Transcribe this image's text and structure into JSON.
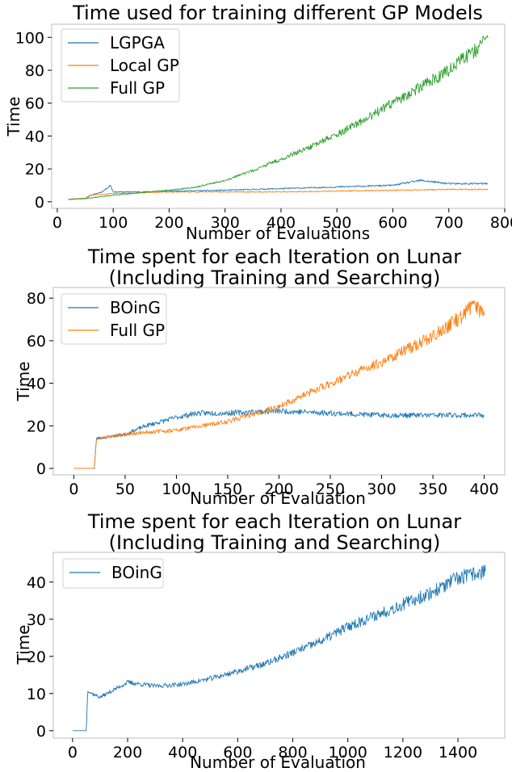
{
  "chart_data": [
    {
      "type": "line",
      "title": "Time used for training different GP Models",
      "title_lines": [
        "Time used for training different GP Models"
      ],
      "xlabel": "Number of Evaluations",
      "ylabel": "Time",
      "xlim": [
        -10,
        800
      ],
      "ylim": [
        -4,
        108
      ],
      "xticks": [
        0,
        100,
        200,
        300,
        400,
        500,
        600,
        700,
        800
      ],
      "yticks": [
        0,
        20,
        40,
        60,
        80,
        100
      ],
      "grid": false,
      "legend_position": "top-left",
      "series": [
        {
          "name": "LGPGA",
          "color": "#1f77b4",
          "x": [
            20,
            50,
            60,
            80,
            95,
            100,
            150,
            200,
            300,
            400,
            500,
            600,
            650,
            700,
            770
          ],
          "y": [
            1.5,
            2,
            4,
            6,
            10,
            6,
            6,
            6.5,
            7,
            8,
            9,
            10,
            13,
            11,
            11
          ]
        },
        {
          "name": "Local GP",
          "color": "#ff7f0e",
          "x": [
            20,
            50,
            60,
            100,
            150,
            200,
            300,
            400,
            500,
            600,
            700,
            770
          ],
          "y": [
            1.5,
            2,
            4,
            5,
            5.5,
            6,
            6,
            6,
            6.5,
            7,
            7.5,
            7.5
          ]
        },
        {
          "name": "Full GP",
          "color": "#2ca02c",
          "x": [
            20,
            50,
            100,
            150,
            200,
            250,
            300,
            350,
            400,
            450,
            500,
            550,
            600,
            650,
            700,
            750,
            770
          ],
          "y": [
            1.5,
            2,
            4,
            5.5,
            7,
            9,
            13,
            19,
            26,
            33,
            41,
            50,
            60,
            70,
            80,
            93,
            100
          ]
        }
      ]
    },
    {
      "type": "line",
      "title": "Time spent for each Iteration on Lunar (Including Training and Searching)",
      "title_lines": [
        "Time spent for each Iteration on Lunar",
        "(Including Training and Searching)"
      ],
      "xlabel": "Number of Evaluation",
      "ylabel": "Time",
      "xlim": [
        -20,
        420
      ],
      "ylim": [
        -3,
        85
      ],
      "xticks": [
        0,
        50,
        100,
        150,
        200,
        250,
        300,
        350,
        400
      ],
      "yticks": [
        0,
        20,
        40,
        60,
        80
      ],
      "grid": false,
      "legend_position": "top-left",
      "series": [
        {
          "name": "BOinG",
          "color": "#1f77b4",
          "x": [
            0,
            20,
            22,
            50,
            70,
            100,
            120,
            150,
            200,
            250,
            300,
            350,
            400
          ],
          "y": [
            0,
            0,
            14,
            16,
            20,
            24,
            26,
            26,
            27,
            26,
            25,
            25,
            25
          ]
        },
        {
          "name": "Full GP",
          "color": "#ff7f0e",
          "x": [
            0,
            20,
            22,
            50,
            70,
            100,
            150,
            200,
            250,
            300,
            350,
            380,
            390,
            400
          ],
          "y": [
            0,
            0,
            14,
            16,
            17,
            18,
            22,
            29,
            40,
            50,
            62,
            72,
            78,
            72
          ]
        }
      ]
    },
    {
      "type": "line",
      "title": "Time spent for each Iteration on Lunar (Including Training and Searching)",
      "title_lines": [
        "Time spent for each Iteration on Lunar",
        "(Including Training and Searching)"
      ],
      "xlabel": "Number of Evaluation",
      "ylabel": "Time",
      "xlim": [
        -70,
        1570
      ],
      "ylim": [
        -2,
        48
      ],
      "xticks": [
        0,
        200,
        400,
        600,
        800,
        1000,
        1200,
        1400
      ],
      "yticks": [
        0,
        10,
        20,
        30,
        40
      ],
      "grid": false,
      "legend_position": "top-left",
      "series": [
        {
          "name": "BOinG",
          "color": "#1f77b4",
          "x": [
            0,
            50,
            55,
            70,
            100,
            200,
            300,
            400,
            500,
            600,
            700,
            800,
            900,
            1000,
            1100,
            1200,
            1300,
            1400,
            1500
          ],
          "y": [
            0,
            0,
            11,
            10,
            9,
            13,
            12,
            12.5,
            14,
            16,
            18,
            21,
            24,
            28,
            31,
            34,
            37,
            41,
            43
          ]
        }
      ]
    }
  ]
}
